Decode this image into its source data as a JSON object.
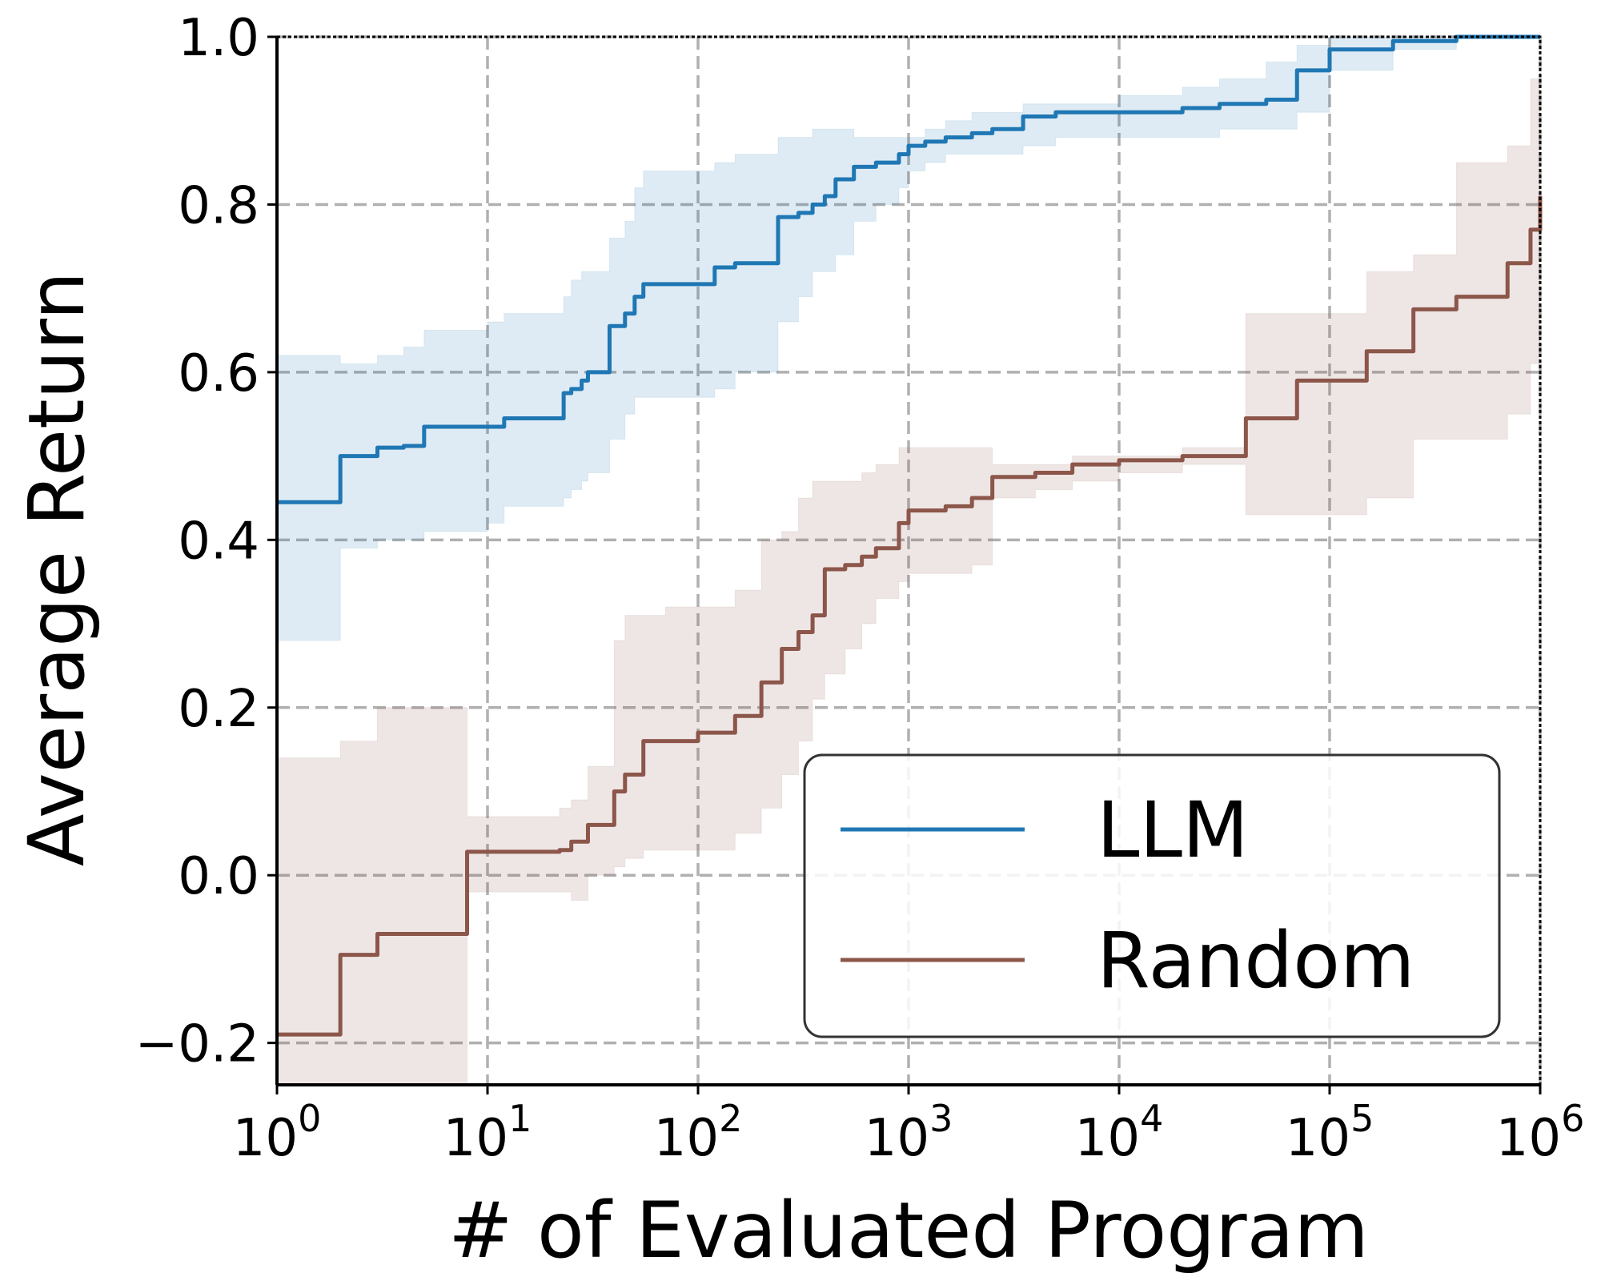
{
  "chart_data": {
    "type": "line",
    "title": "",
    "xlabel": "# of Evaluated Program",
    "ylabel": "Average Return",
    "xscale": "log",
    "xlim": [
      1,
      1000000
    ],
    "ylim": [
      -0.25,
      1.0
    ],
    "x_ticks": [
      {
        "base": "10",
        "exp": "0",
        "value": 1
      },
      {
        "base": "10",
        "exp": "1",
        "value": 10
      },
      {
        "base": "10",
        "exp": "2",
        "value": 100
      },
      {
        "base": "10",
        "exp": "3",
        "value": 1000
      },
      {
        "base": "10",
        "exp": "4",
        "value": 10000
      },
      {
        "base": "10",
        "exp": "5",
        "value": 100000
      },
      {
        "base": "10",
        "exp": "6",
        "value": 1000000
      }
    ],
    "y_ticks": [
      {
        "label": "−0.2",
        "value": -0.2
      },
      {
        "label": "0.0",
        "value": 0.0
      },
      {
        "label": "0.2",
        "value": 0.2
      },
      {
        "label": "0.4",
        "value": 0.4
      },
      {
        "label": "0.6",
        "value": 0.6
      },
      {
        "label": "0.8",
        "value": 0.8
      },
      {
        "label": "1.0",
        "value": 1.0
      }
    ],
    "grid": true,
    "legend": {
      "position": "bottom-right"
    },
    "series": [
      {
        "name": "LLM",
        "color": "#1f77b4",
        "band_color": "#1f77b4",
        "x": [
          1,
          2,
          3,
          4,
          5,
          10,
          12,
          23,
          25,
          28,
          30,
          38,
          45,
          50,
          55,
          120,
          150,
          240,
          300,
          350,
          400,
          450,
          550,
          700,
          900,
          1000,
          1200,
          1500,
          2000,
          2500,
          3500,
          5000,
          10000,
          20000,
          30000,
          50000,
          70000,
          100000,
          200000,
          400000,
          1000000
        ],
        "y": [
          0.445,
          0.5,
          0.51,
          0.512,
          0.535,
          0.535,
          0.545,
          0.575,
          0.58,
          0.59,
          0.6,
          0.655,
          0.67,
          0.69,
          0.705,
          0.725,
          0.73,
          0.785,
          0.79,
          0.8,
          0.81,
          0.83,
          0.845,
          0.85,
          0.86,
          0.87,
          0.875,
          0.88,
          0.885,
          0.89,
          0.905,
          0.91,
          0.91,
          0.915,
          0.92,
          0.925,
          0.96,
          0.985,
          0.995,
          1.0,
          1.0
        ],
        "low": [
          0.28,
          0.39,
          0.4,
          0.4,
          0.41,
          0.42,
          0.44,
          0.45,
          0.46,
          0.47,
          0.48,
          0.52,
          0.55,
          0.57,
          0.57,
          0.58,
          0.6,
          0.66,
          0.69,
          0.72,
          0.72,
          0.74,
          0.78,
          0.8,
          0.82,
          0.84,
          0.85,
          0.86,
          0.86,
          0.86,
          0.87,
          0.88,
          0.88,
          0.88,
          0.89,
          0.89,
          0.91,
          0.96,
          0.985,
          1.0,
          1.0
        ],
        "high": [
          0.62,
          0.61,
          0.62,
          0.63,
          0.65,
          0.66,
          0.67,
          0.69,
          0.71,
          0.72,
          0.72,
          0.76,
          0.78,
          0.82,
          0.84,
          0.85,
          0.86,
          0.88,
          0.88,
          0.89,
          0.89,
          0.89,
          0.88,
          0.88,
          0.88,
          0.88,
          0.89,
          0.9,
          0.91,
          0.91,
          0.92,
          0.92,
          0.93,
          0.94,
          0.95,
          0.97,
          0.99,
          1.0,
          1.0,
          1.0,
          1.0
        ]
      },
      {
        "name": "Random",
        "color": "#8c564b",
        "band_color": "#8c564b",
        "x": [
          1,
          2,
          3,
          4,
          7,
          8,
          10,
          22,
          25,
          30,
          40,
          45,
          55,
          70,
          100,
          150,
          200,
          250,
          300,
          350,
          400,
          500,
          600,
          700,
          900,
          1000,
          1500,
          2000,
          2500,
          4000,
          6000,
          10000,
          20000,
          35000,
          40000,
          70000,
          150000,
          250000,
          400000,
          700000,
          900000,
          1000000
        ],
        "y": [
          -0.19,
          -0.095,
          -0.07,
          -0.07,
          -0.07,
          0.028,
          0.028,
          0.03,
          0.04,
          0.06,
          0.1,
          0.12,
          0.16,
          0.16,
          0.17,
          0.19,
          0.23,
          0.27,
          0.29,
          0.31,
          0.365,
          0.37,
          0.38,
          0.39,
          0.42,
          0.435,
          0.44,
          0.45,
          0.475,
          0.48,
          0.49,
          0.495,
          0.5,
          0.5,
          0.545,
          0.59,
          0.625,
          0.675,
          0.69,
          0.73,
          0.77,
          0.81
        ],
        "low": [
          -0.25,
          -0.25,
          -0.25,
          -0.25,
          -0.25,
          -0.02,
          -0.02,
          -0.02,
          -0.03,
          0.0,
          0.01,
          0.02,
          0.03,
          0.03,
          0.03,
          0.05,
          0.08,
          0.12,
          0.16,
          0.21,
          0.24,
          0.27,
          0.3,
          0.33,
          0.35,
          0.36,
          0.36,
          0.37,
          0.45,
          0.46,
          0.47,
          0.48,
          0.49,
          0.49,
          0.43,
          0.43,
          0.45,
          0.52,
          0.52,
          0.55,
          0.61,
          0.64
        ],
        "high": [
          0.14,
          0.16,
          0.2,
          0.2,
          0.2,
          0.07,
          0.07,
          0.08,
          0.09,
          0.13,
          0.28,
          0.31,
          0.31,
          0.32,
          0.32,
          0.34,
          0.4,
          0.41,
          0.45,
          0.47,
          0.47,
          0.47,
          0.48,
          0.49,
          0.51,
          0.51,
          0.51,
          0.51,
          0.49,
          0.49,
          0.5,
          0.5,
          0.51,
          0.51,
          0.67,
          0.67,
          0.72,
          0.74,
          0.85,
          0.87,
          0.95,
          0.96
        ]
      }
    ]
  }
}
